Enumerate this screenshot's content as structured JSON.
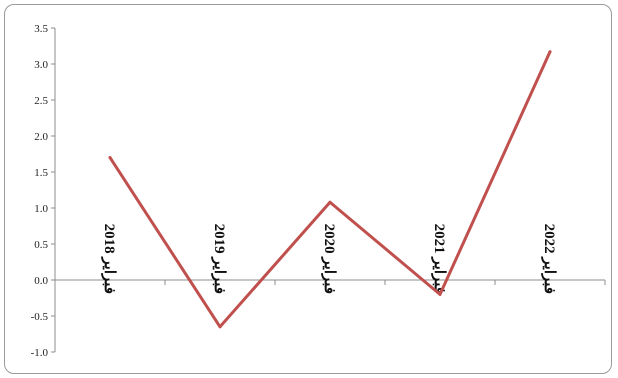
{
  "chart_data": {
    "type": "line",
    "categories": [
      "فبراير 2018",
      "فبراير 2019",
      "فبراير 2020",
      "فبراير 2021",
      "فبراير 2022"
    ],
    "series": [
      {
        "values": [
          1.7,
          -0.65,
          1.08,
          -0.2,
          3.17
        ]
      }
    ],
    "ylim": [
      -1.0,
      3.5
    ],
    "yticks": [
      "3.5",
      "3.0",
      "2.5",
      "2.0",
      "1.5",
      "1.0",
      "0.5",
      "0.0",
      "-0.5",
      "-1.0"
    ],
    "line_color": "#c0504d",
    "grid": false
  }
}
